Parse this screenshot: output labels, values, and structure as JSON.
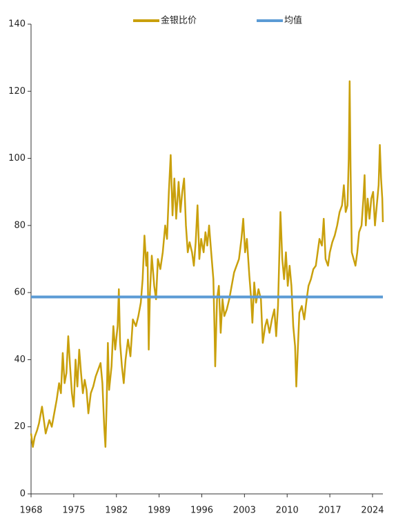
{
  "chart_data": {
    "type": "line",
    "xlim": [
      1968,
      2025.7
    ],
    "ylim": [
      0,
      140
    ],
    "xticks": [
      1968,
      1975,
      1982,
      1989,
      1996,
      2003,
      2010,
      2017,
      2024
    ],
    "yticks": [
      0,
      20,
      40,
      60,
      80,
      100,
      120,
      140
    ],
    "legend": "top",
    "series": [
      {
        "name": "金银比价",
        "color": "#c9a00c",
        "x": [
          1968.0,
          1968.3,
          1968.6,
          1969.0,
          1969.3,
          1969.6,
          1969.8,
          1970.1,
          1970.4,
          1970.7,
          1971.0,
          1971.4,
          1971.8,
          1972.2,
          1972.6,
          1972.9,
          1973.2,
          1973.5,
          1973.8,
          1974.1,
          1974.4,
          1974.7,
          1975.0,
          1975.3,
          1975.6,
          1975.9,
          1976.2,
          1976.5,
          1976.8,
          1977.1,
          1977.4,
          1977.8,
          1978.2,
          1978.6,
          1979.0,
          1979.4,
          1979.7,
          1980.0,
          1980.2,
          1980.4,
          1980.6,
          1980.8,
          1981.2,
          1981.5,
          1981.8,
          1982.2,
          1982.4,
          1982.6,
          1982.9,
          1983.2,
          1983.5,
          1983.9,
          1984.3,
          1984.7,
          1985.2,
          1985.6,
          1986.0,
          1986.3,
          1986.6,
          1986.9,
          1987.1,
          1987.3,
          1987.5,
          1987.8,
          1988.2,
          1988.5,
          1988.8,
          1989.2,
          1989.6,
          1990.0,
          1990.3,
          1990.6,
          1990.9,
          1991.2,
          1991.5,
          1991.8,
          1992.2,
          1992.5,
          1992.8,
          1993.1,
          1993.4,
          1993.7,
          1994.0,
          1994.4,
          1994.7,
          1995.0,
          1995.3,
          1995.6,
          1995.9,
          1996.3,
          1996.6,
          1996.9,
          1997.2,
          1997.5,
          1997.9,
          1998.1,
          1998.2,
          1998.5,
          1998.8,
          1999.1,
          1999.4,
          1999.7,
          2000.1,
          2000.5,
          2000.9,
          2001.3,
          2001.7,
          2002.1,
          2002.5,
          2002.8,
          2003.1,
          2003.4,
          2003.8,
          2004.1,
          2004.3,
          2004.6,
          2004.9,
          2005.3,
          2005.7,
          2006.0,
          2006.4,
          2006.7,
          2007.1,
          2007.5,
          2007.9,
          2008.2,
          2008.5,
          2008.8,
          2008.9,
          2009.2,
          2009.5,
          2009.8,
          2010.1,
          2010.4,
          2010.7,
          2011.0,
          2011.3,
          2011.5,
          2011.7,
          2012.0,
          2012.4,
          2012.8,
          2013.2,
          2013.5,
          2013.9,
          2014.3,
          2014.7,
          2015.0,
          2015.3,
          2015.7,
          2016.0,
          2016.3,
          2016.7,
          2017.0,
          2017.4,
          2017.8,
          2018.2,
          2018.6,
          2019.0,
          2019.3,
          2019.6,
          2019.9,
          2020.1,
          2020.25,
          2020.4,
          2020.6,
          2020.9,
          2021.2,
          2021.5,
          2021.8,
          2022.2,
          2022.5,
          2022.7,
          2022.9,
          2023.2,
          2023.5,
          2023.8,
          2024.1,
          2024.4,
          2024.7,
          2025.0,
          2025.2,
          2025.4,
          2025.6,
          2025.7
        ],
        "values": [
          18,
          14,
          17,
          19,
          21,
          24,
          26,
          22,
          18,
          20,
          22,
          20,
          24,
          28,
          33,
          30,
          42,
          33,
          36,
          47,
          38,
          30,
          26,
          40,
          32,
          43,
          36,
          30,
          34,
          31,
          24,
          30,
          32,
          35,
          37,
          39,
          33,
          20,
          14,
          27,
          45,
          31,
          38,
          50,
          43,
          50,
          61,
          45,
          38,
          33,
          40,
          46,
          41,
          52,
          50,
          53,
          57,
          64,
          77,
          68,
          72,
          43,
          60,
          71,
          62,
          58,
          70,
          67,
          72,
          80,
          76,
          90,
          101,
          83,
          94,
          82,
          93,
          84,
          90,
          94,
          80,
          72,
          75,
          72,
          68,
          75,
          86,
          70,
          76,
          72,
          78,
          74,
          80,
          73,
          64,
          48,
          38,
          58,
          62,
          48,
          58,
          53,
          55,
          58,
          62,
          66,
          68,
          70,
          76,
          82,
          72,
          76,
          65,
          58,
          51,
          63,
          57,
          61,
          58,
          45,
          50,
          52,
          48,
          52,
          55,
          47,
          56,
          77,
          84,
          70,
          64,
          72,
          62,
          68,
          62,
          50,
          44,
          32,
          41,
          54,
          56,
          52,
          58,
          62,
          64,
          67,
          68,
          72,
          76,
          74,
          82,
          70,
          68,
          72,
          75,
          77,
          80,
          84,
          86,
          92,
          84,
          86,
          100,
          123,
          97,
          72,
          70,
          68,
          72,
          78,
          80,
          88,
          95,
          80,
          88,
          82,
          88,
          90,
          80,
          86,
          92,
          104,
          94,
          88,
          81
        ]
      },
      {
        "name": "均值",
        "color": "#5b9bd5",
        "x": [
          1968,
          2025.7
        ],
        "values": [
          58.7,
          58.7
        ]
      }
    ]
  }
}
